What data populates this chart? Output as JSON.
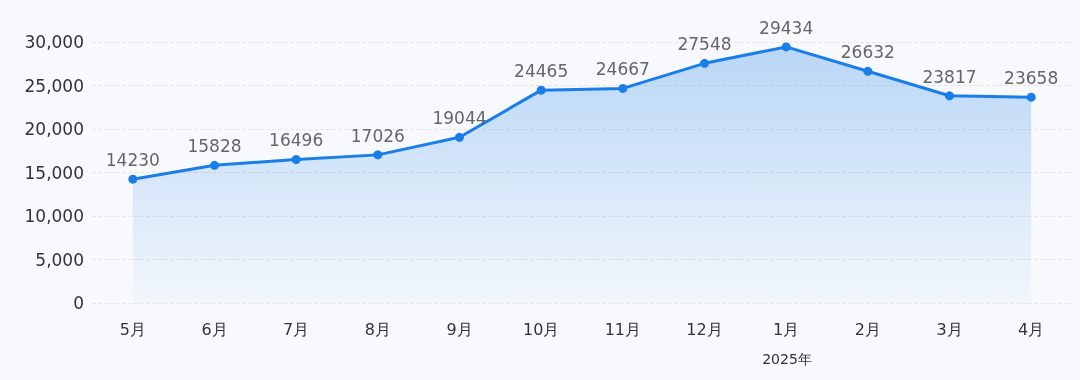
{
  "chart_data": {
    "type": "area",
    "categories": [
      "5月",
      "6月",
      "7月",
      "8月",
      "9月",
      "10月",
      "11月",
      "12月",
      "1月",
      "2月",
      "3月",
      "4月"
    ],
    "series": [
      {
        "color": "#1a7ee8",
        "values": [
          14230,
          15828,
          16496,
          17026,
          19044,
          24465,
          24667,
          27548,
          29434,
          26632,
          23817,
          23658
        ]
      }
    ],
    "ylim": [
      0,
      30000
    ],
    "yticks": [
      {
        "value": 0,
        "label": "0"
      },
      {
        "value": 5000,
        "label": "5,000"
      },
      {
        "value": 10000,
        "label": "10,000"
      },
      {
        "value": 15000,
        "label": "15,000"
      },
      {
        "value": 20000,
        "label": "20,000"
      },
      {
        "value": 25000,
        "label": "25,000"
      },
      {
        "value": 30000,
        "label": "30,000"
      }
    ],
    "grid": "y",
    "marker": "circle",
    "line_style": "solid",
    "data_labels": true,
    "annotations": [
      "2025年"
    ]
  }
}
